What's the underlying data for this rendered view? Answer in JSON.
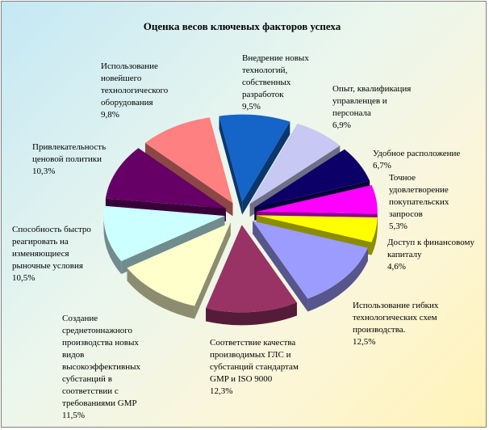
{
  "chart_data": {
    "type": "pie",
    "title": "Оценка весов ключевых факторов успеха",
    "style": "3d-exploded",
    "slices": [
      {
        "label": [
          "Внедрение новых",
          "технологий,",
          "собственных",
          "разработок"
        ],
        "value": 9.5,
        "value_text": "9,5%",
        "color": "#1564c8"
      },
      {
        "label": [
          "Опыт, квалификация",
          "управленцев и",
          "персонала"
        ],
        "value": 6.9,
        "value_text": "6,9%",
        "color": "#c8c8f4"
      },
      {
        "label": [
          "Удобное расположение"
        ],
        "value": 6.7,
        "value_text": "6,7%",
        "color": "#0c0068"
      },
      {
        "label": [
          "Точное",
          "удовлетворение",
          "покупательских",
          "запросов"
        ],
        "value": 5.3,
        "value_text": "5,3%",
        "color": "#ff00ff"
      },
      {
        "label": [
          "Доступ к финансовому",
          "капиталу"
        ],
        "value": 4.6,
        "value_text": "4,6%",
        "color": "#ffff00"
      },
      {
        "label": [
          "Использование  гибких",
          "технологических схем",
          "производства."
        ],
        "value": 12.5,
        "value_text": "12,5%",
        "color": "#9c9cff"
      },
      {
        "label": [
          "Соответствие качества",
          "производимых ГЛС и",
          "субстанций стандартам",
          "GMP и ISO 9000"
        ],
        "value": 12.3,
        "value_text": "12,3%",
        "color": "#993366"
      },
      {
        "label": [
          "Создание",
          "среднетоннажного",
          "производства новых",
          "видов",
          "высокоэффективных",
          "субстанций в",
          "соответствии с",
          "требованиями GMP"
        ],
        "value": 11.5,
        "value_text": "11,5%",
        "color": "#ffffcc"
      },
      {
        "label": [
          "Способность быстро",
          "реагировать на",
          "изменяющиеся",
          "рыночные условия"
        ],
        "value": 10.5,
        "value_text": "10,5%",
        "color": "#ccffff"
      },
      {
        "label": [
          "Привлекательность",
          "ценовой политики"
        ],
        "value": 10.3,
        "value_text": "10,3%",
        "color": "#660066"
      },
      {
        "label": [
          "Использование",
          "новейшего",
          "технологического",
          "оборудования"
        ],
        "value": 9.8,
        "value_text": "9,8%",
        "color": "#ff8080"
      }
    ]
  }
}
